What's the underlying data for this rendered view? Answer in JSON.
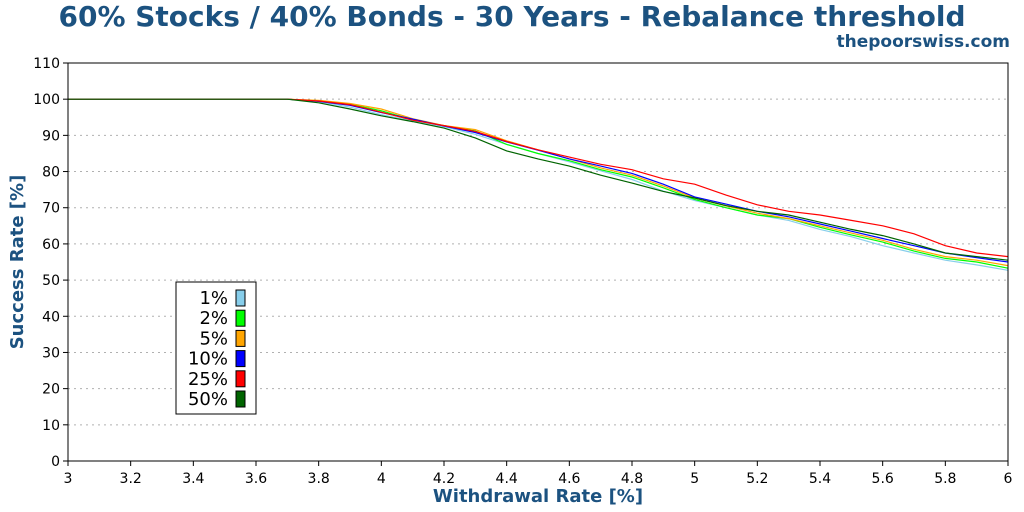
{
  "chart_data": {
    "type": "line",
    "title": "60% Stocks / 40% Bonds - 30 Years - Rebalance threshold",
    "subtitle": "thepoorswiss.com",
    "xlabel": "Withdrawal Rate [%]",
    "ylabel": "Success Rate [%]",
    "xlim": [
      3,
      6
    ],
    "ylim": [
      0,
      110
    ],
    "xticks": [
      3,
      3.2,
      3.4,
      3.6,
      3.8,
      4,
      4.2,
      4.4,
      4.6,
      4.8,
      5,
      5.2,
      5.4,
      5.6,
      5.8,
      6
    ],
    "xtick_labels": [
      "3",
      "3.2",
      "3.4",
      "3.6",
      "3.8",
      "4",
      "4.2",
      "4.4",
      "4.6",
      "4.8",
      "5",
      "5.2",
      "5.4",
      "5.6",
      "5.8",
      "6"
    ],
    "yticks": [
      0,
      10,
      20,
      30,
      40,
      50,
      60,
      70,
      80,
      90,
      100,
      110
    ],
    "ytick_labels": [
      "0",
      "10",
      "20",
      "30",
      "40",
      "50",
      "60",
      "70",
      "80",
      "90",
      "100",
      "110"
    ],
    "grid": true,
    "legend_position": "lower-left",
    "x": [
      3.0,
      3.7,
      3.8,
      3.9,
      4.0,
      4.1,
      4.2,
      4.3,
      4.4,
      4.5,
      4.6,
      4.7,
      4.8,
      4.9,
      5.0,
      5.1,
      5.2,
      5.3,
      5.4,
      5.5,
      5.6,
      5.7,
      5.8,
      5.9,
      6.0
    ],
    "series": [
      {
        "name": "1%",
        "color": "#87ceeb",
        "values": [
          100,
          100,
          99.3,
          97.8,
          95.7,
          94.0,
          92.4,
          90.3,
          87.5,
          85.0,
          82.7,
          80.2,
          77.8,
          74.6,
          72.0,
          70.0,
          68.0,
          66.5,
          64.0,
          62.0,
          59.5,
          57.5,
          55.5,
          54.2,
          52.7
        ]
      },
      {
        "name": "2%",
        "color": "#00ff00",
        "values": [
          100,
          100,
          99.5,
          98.6,
          96.8,
          94.3,
          92.7,
          91.2,
          87.5,
          85.0,
          83.0,
          80.5,
          78.5,
          75.5,
          72.3,
          70.0,
          68.0,
          67.0,
          64.6,
          62.5,
          60.5,
          58.0,
          56.0,
          55.0,
          53.3
        ]
      },
      {
        "name": "5%",
        "color": "#ffa500",
        "values": [
          100,
          100,
          99.7,
          98.8,
          97.3,
          94.6,
          92.7,
          91.6,
          88.5,
          86.0,
          83.5,
          81.0,
          79.0,
          76.0,
          72.7,
          70.5,
          68.5,
          67.0,
          65.0,
          63.0,
          61.0,
          58.5,
          56.5,
          55.5,
          54.0
        ]
      },
      {
        "name": "10%",
        "color": "#0000ff",
        "values": [
          100,
          100,
          99.4,
          98.3,
          96.3,
          94.5,
          92.6,
          90.8,
          88.2,
          85.9,
          83.5,
          81.5,
          79.5,
          76.5,
          73.0,
          71.0,
          69.0,
          67.5,
          65.5,
          63.5,
          61.5,
          59.5,
          57.5,
          56.2,
          55.0
        ]
      },
      {
        "name": "25%",
        "color": "#ff0000",
        "values": [
          100,
          100,
          99.5,
          98.5,
          96.4,
          94.2,
          92.7,
          91.1,
          88.3,
          86.0,
          84.0,
          82.0,
          80.5,
          78.0,
          76.5,
          73.5,
          70.8,
          69.0,
          68.0,
          66.5,
          65.0,
          62.8,
          59.5,
          57.5,
          56.5
        ]
      },
      {
        "name": "50%",
        "color": "#006400",
        "values": [
          100,
          100,
          99.0,
          97.3,
          95.4,
          93.8,
          92.0,
          89.3,
          85.7,
          83.5,
          81.5,
          79.0,
          76.8,
          74.5,
          72.7,
          70.6,
          69.0,
          68.0,
          66.0,
          64.0,
          62.3,
          60.0,
          57.5,
          56.5,
          55.5
        ]
      }
    ]
  }
}
